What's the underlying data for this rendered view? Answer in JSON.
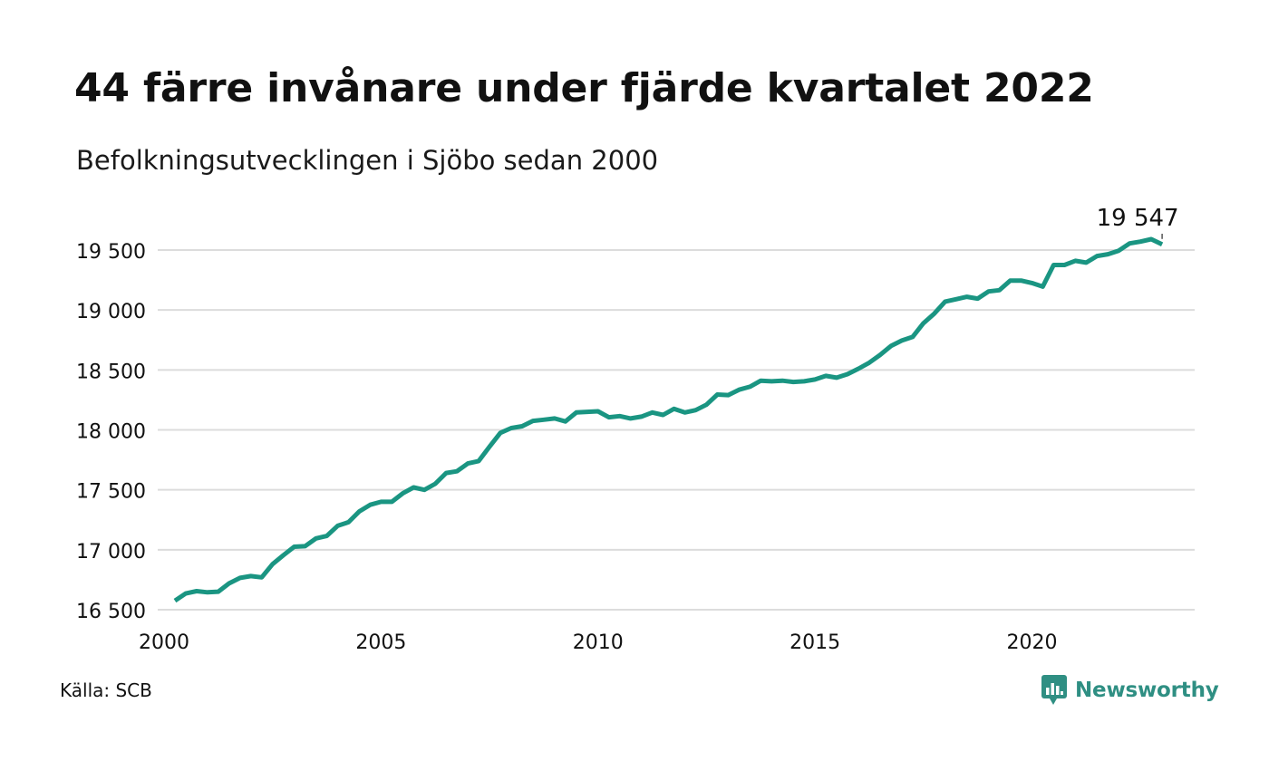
{
  "header": {
    "title": "44 färre invånare under fjärde kvartalet 2022",
    "subtitle": "Befolkningsutvecklingen i Sjöbo sedan 2000"
  },
  "footer": {
    "source": "Källa: SCB",
    "brand": "Newsworthy"
  },
  "colors": {
    "line": "#1a9582",
    "grid": "#dcdcdc",
    "text": "#111111",
    "brand": "#2f8f83"
  },
  "chart_data": {
    "type": "line",
    "title": "44 färre invånare under fjärde kvartalet 2022",
    "subtitle": "Befolkningsutvecklingen i Sjöbo sedan 2000",
    "xlabel": "",
    "ylabel": "",
    "xlim": [
      2000,
      2023.75
    ],
    "ylim": [
      16500,
      19600
    ],
    "grid": true,
    "legend": "none",
    "x_ticks": [
      {
        "value": 2000,
        "label": "2000"
      },
      {
        "value": 2005,
        "label": "2005"
      },
      {
        "value": 2010,
        "label": "2010"
      },
      {
        "value": 2015,
        "label": "2015"
      },
      {
        "value": 2020,
        "label": "2020"
      }
    ],
    "y_ticks": [
      {
        "value": 16500,
        "label": "16 500"
      },
      {
        "value": 17000,
        "label": "17 000"
      },
      {
        "value": 17500,
        "label": "17 500"
      },
      {
        "value": 18000,
        "label": "18 000"
      },
      {
        "value": 18500,
        "label": "18 500"
      },
      {
        "value": 19000,
        "label": "19 000"
      },
      {
        "value": 19500,
        "label": "19 500"
      }
    ],
    "annotation": {
      "x": 2023.0,
      "y": 19547,
      "label": "19 547"
    },
    "series": [
      {
        "points": [
          [
            2000.25,
            16575
          ],
          [
            2000.5,
            16635
          ],
          [
            2000.75,
            16655
          ],
          [
            2001.0,
            16645
          ],
          [
            2001.25,
            16650
          ],
          [
            2001.5,
            16720
          ],
          [
            2001.75,
            16765
          ],
          [
            2002.0,
            16780
          ],
          [
            2002.25,
            16770
          ],
          [
            2002.5,
            16880
          ],
          [
            2002.75,
            16955
          ],
          [
            2003.0,
            17025
          ],
          [
            2003.25,
            17030
          ],
          [
            2003.5,
            17095
          ],
          [
            2003.75,
            17115
          ],
          [
            2004.0,
            17200
          ],
          [
            2004.25,
            17230
          ],
          [
            2004.5,
            17320
          ],
          [
            2004.75,
            17375
          ],
          [
            2005.0,
            17400
          ],
          [
            2005.25,
            17400
          ],
          [
            2005.5,
            17470
          ],
          [
            2005.75,
            17520
          ],
          [
            2006.0,
            17500
          ],
          [
            2006.25,
            17550
          ],
          [
            2006.5,
            17640
          ],
          [
            2006.75,
            17655
          ],
          [
            2007.0,
            17720
          ],
          [
            2007.25,
            17740
          ],
          [
            2007.5,
            17860
          ],
          [
            2007.75,
            17975
          ],
          [
            2008.0,
            18015
          ],
          [
            2008.25,
            18030
          ],
          [
            2008.5,
            18075
          ],
          [
            2008.75,
            18085
          ],
          [
            2009.0,
            18095
          ],
          [
            2009.25,
            18070
          ],
          [
            2009.5,
            18145
          ],
          [
            2009.75,
            18150
          ],
          [
            2010.0,
            18155
          ],
          [
            2010.25,
            18105
          ],
          [
            2010.5,
            18115
          ],
          [
            2010.75,
            18095
          ],
          [
            2011.0,
            18110
          ],
          [
            2011.25,
            18145
          ],
          [
            2011.5,
            18125
          ],
          [
            2011.75,
            18175
          ],
          [
            2012.0,
            18145
          ],
          [
            2012.25,
            18165
          ],
          [
            2012.5,
            18210
          ],
          [
            2012.75,
            18295
          ],
          [
            2013.0,
            18290
          ],
          [
            2013.25,
            18335
          ],
          [
            2013.5,
            18360
          ],
          [
            2013.75,
            18410
          ],
          [
            2014.0,
            18405
          ],
          [
            2014.25,
            18410
          ],
          [
            2014.5,
            18400
          ],
          [
            2014.75,
            18405
          ],
          [
            2015.0,
            18420
          ],
          [
            2015.25,
            18450
          ],
          [
            2015.5,
            18435
          ],
          [
            2015.75,
            18465
          ],
          [
            2016.0,
            18510
          ],
          [
            2016.25,
            18560
          ],
          [
            2016.5,
            18625
          ],
          [
            2016.75,
            18700
          ],
          [
            2017.0,
            18745
          ],
          [
            2017.25,
            18775
          ],
          [
            2017.5,
            18890
          ],
          [
            2017.75,
            18970
          ],
          [
            2018.0,
            19070
          ],
          [
            2018.25,
            19090
          ],
          [
            2018.5,
            19110
          ],
          [
            2018.75,
            19095
          ],
          [
            2019.0,
            19155
          ],
          [
            2019.25,
            19165
          ],
          [
            2019.5,
            19245
          ],
          [
            2019.75,
            19245
          ],
          [
            2020.0,
            19225
          ],
          [
            2020.25,
            19195
          ],
          [
            2020.5,
            19375
          ],
          [
            2020.75,
            19375
          ],
          [
            2021.0,
            19410
          ],
          [
            2021.25,
            19395
          ],
          [
            2021.5,
            19450
          ],
          [
            2021.75,
            19465
          ],
          [
            2022.0,
            19495
          ],
          [
            2022.25,
            19555
          ],
          [
            2022.5,
            19570
          ],
          [
            2022.75,
            19591
          ],
          [
            2023.0,
            19547
          ]
        ]
      }
    ]
  }
}
